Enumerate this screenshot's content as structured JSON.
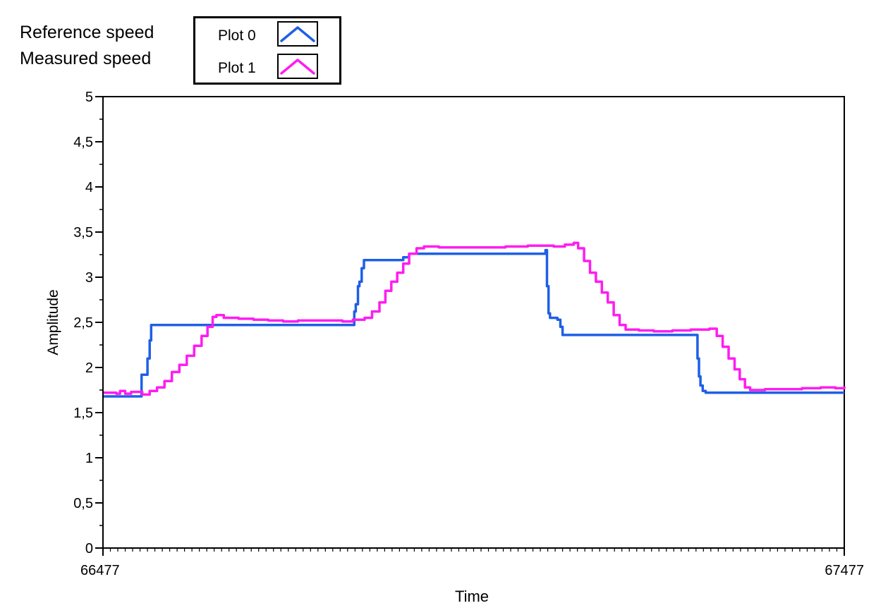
{
  "labels": [
    "Reference speed",
    "Measured speed"
  ],
  "legend": [
    {
      "name": "Plot 0",
      "color": "#1f5fe6"
    },
    {
      "name": "Plot 1",
      "color": "#ff1cf0"
    }
  ],
  "chart_data": {
    "type": "line",
    "xlabel": "Time",
    "ylabel": "Amplitude",
    "xlim": [
      66477,
      67477
    ],
    "ylim": [
      0,
      5
    ],
    "x_ticks": [
      "66477",
      "67477"
    ],
    "y_ticks": [
      "0",
      "0,5",
      "1",
      "1,5",
      "2",
      "2,5",
      "3",
      "3,5",
      "4",
      "4,5",
      "5"
    ],
    "grid": false,
    "series": [
      {
        "name": "Plot 0",
        "color": "#1f5fe6",
        "points": [
          [
            66477,
            1.68
          ],
          [
            66527,
            1.68
          ],
          [
            66529,
            1.92
          ],
          [
            66534,
            1.92
          ],
          [
            66537,
            2.1
          ],
          [
            66540,
            2.3
          ],
          [
            66542,
            2.47
          ],
          [
            66814,
            2.47
          ],
          [
            66816,
            2.62
          ],
          [
            66818,
            2.7
          ],
          [
            66821,
            2.9
          ],
          [
            66823,
            2.95
          ],
          [
            66826,
            3.1
          ],
          [
            66829,
            3.19
          ],
          [
            66880,
            3.19
          ],
          [
            66882,
            3.22
          ],
          [
            66888,
            3.22
          ],
          [
            66890,
            3.26
          ],
          [
            67072,
            3.26
          ],
          [
            67074,
            3.3
          ],
          [
            67076,
            2.9
          ],
          [
            67078,
            2.6
          ],
          [
            67080,
            2.55
          ],
          [
            67090,
            2.53
          ],
          [
            67094,
            2.45
          ],
          [
            67097,
            2.36
          ],
          [
            67277,
            2.36
          ],
          [
            67279,
            2.1
          ],
          [
            67281,
            1.9
          ],
          [
            67283,
            1.8
          ],
          [
            67286,
            1.74
          ],
          [
            67290,
            1.72
          ],
          [
            67477,
            1.72
          ]
        ]
      },
      {
        "name": "Plot 1",
        "color": "#ff1cf0",
        "points": [
          [
            66477,
            1.72
          ],
          [
            66495,
            1.71
          ],
          [
            66500,
            1.74
          ],
          [
            66507,
            1.71
          ],
          [
            66515,
            1.73
          ],
          [
            66530,
            1.7
          ],
          [
            66540,
            1.74
          ],
          [
            66550,
            1.78
          ],
          [
            66560,
            1.85
          ],
          [
            66570,
            1.95
          ],
          [
            66580,
            2.03
          ],
          [
            66590,
            2.13
          ],
          [
            66600,
            2.24
          ],
          [
            66610,
            2.35
          ],
          [
            66618,
            2.45
          ],
          [
            66625,
            2.56
          ],
          [
            66630,
            2.58
          ],
          [
            66640,
            2.55
          ],
          [
            66660,
            2.54
          ],
          [
            66680,
            2.53
          ],
          [
            66700,
            2.52
          ],
          [
            66720,
            2.51
          ],
          [
            66740,
            2.52
          ],
          [
            66760,
            2.52
          ],
          [
            66780,
            2.52
          ],
          [
            66800,
            2.51
          ],
          [
            66814,
            2.53
          ],
          [
            66820,
            2.53
          ],
          [
            66830,
            2.55
          ],
          [
            66840,
            2.62
          ],
          [
            66850,
            2.72
          ],
          [
            66858,
            2.85
          ],
          [
            66866,
            2.95
          ],
          [
            66874,
            3.05
          ],
          [
            66882,
            3.15
          ],
          [
            66890,
            3.26
          ],
          [
            66900,
            3.32
          ],
          [
            66910,
            3.34
          ],
          [
            66930,
            3.33
          ],
          [
            66960,
            3.33
          ],
          [
            66990,
            3.33
          ],
          [
            67020,
            3.34
          ],
          [
            67050,
            3.35
          ],
          [
            67075,
            3.35
          ],
          [
            67085,
            3.34
          ],
          [
            67100,
            3.36
          ],
          [
            67112,
            3.38
          ],
          [
            67118,
            3.32
          ],
          [
            67126,
            3.18
          ],
          [
            67134,
            3.05
          ],
          [
            67142,
            2.95
          ],
          [
            67150,
            2.83
          ],
          [
            67158,
            2.72
          ],
          [
            67166,
            2.58
          ],
          [
            67174,
            2.47
          ],
          [
            67182,
            2.42
          ],
          [
            67200,
            2.41
          ],
          [
            67220,
            2.4
          ],
          [
            67245,
            2.41
          ],
          [
            67270,
            2.42
          ],
          [
            67295,
            2.43
          ],
          [
            67305,
            2.35
          ],
          [
            67313,
            2.23
          ],
          [
            67321,
            2.1
          ],
          [
            67329,
            1.98
          ],
          [
            67336,
            1.87
          ],
          [
            67343,
            1.78
          ],
          [
            67350,
            1.75
          ],
          [
            67370,
            1.76
          ],
          [
            67395,
            1.76
          ],
          [
            67420,
            1.77
          ],
          [
            67445,
            1.78
          ],
          [
            67465,
            1.77
          ],
          [
            67477,
            1.79
          ]
        ]
      }
    ]
  }
}
